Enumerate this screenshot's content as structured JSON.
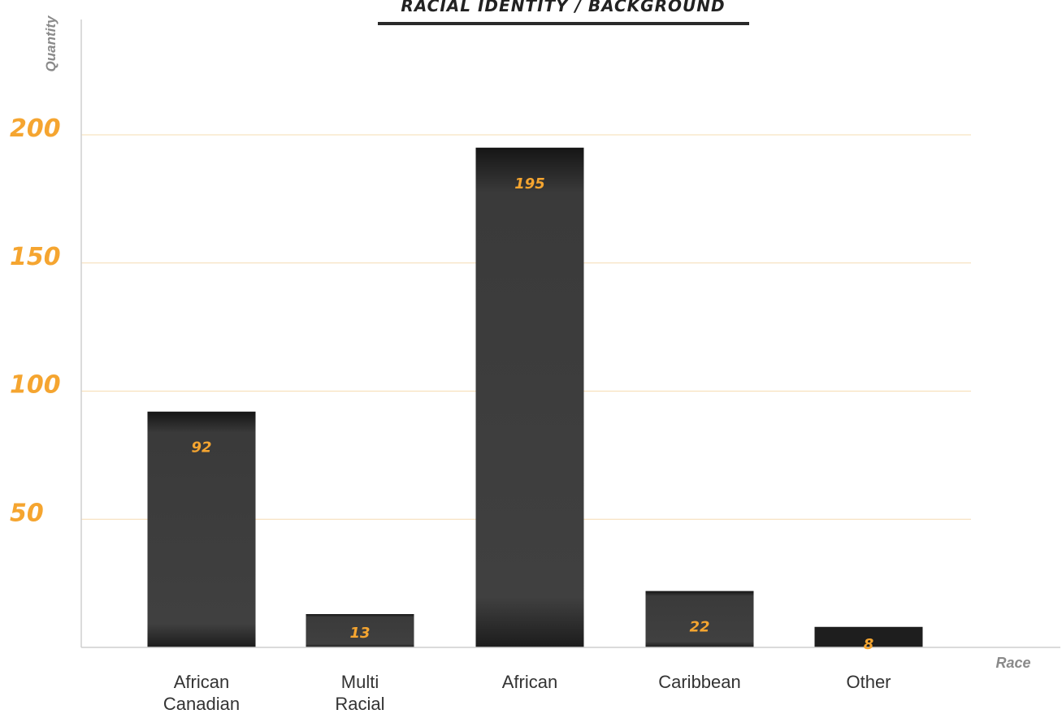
{
  "chart_data": {
    "type": "bar",
    "title": "RACIAL IDENTITY / BACKGROUND",
    "xlabel": "Race",
    "ylabel": "Quantity",
    "categories": [
      [
        "African",
        "Canadian"
      ],
      [
        "Multi",
        "Racial"
      ],
      [
        "African"
      ],
      [
        "Caribbean"
      ],
      [
        "Other"
      ]
    ],
    "values": [
      92,
      13,
      195,
      22,
      8
    ],
    "value_labels": [
      "92",
      "13",
      "195",
      "22",
      "8"
    ],
    "yticks": [
      50,
      100,
      150,
      200
    ],
    "ytick_labels": [
      "50",
      "100",
      "150",
      "200"
    ],
    "ylim": [
      0,
      202
    ],
    "grid": true,
    "colors": {
      "bar": "#3d3d3d",
      "bar_edge": "#1a1a1a",
      "accent": "#f5a530",
      "grid": "#f6dcb2",
      "axis": "#cfcfcf",
      "title_underline": "#2a2a2a"
    }
  }
}
